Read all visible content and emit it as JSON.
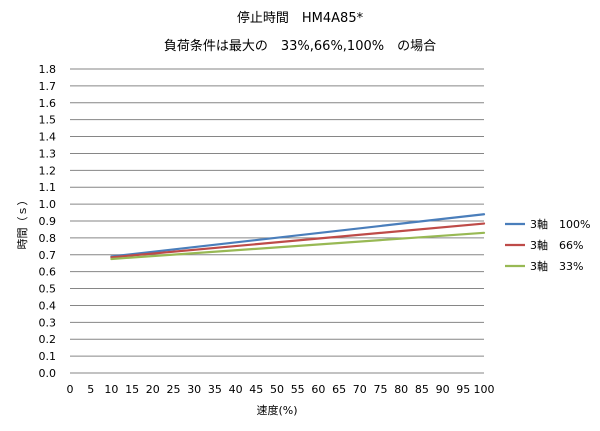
{
  "chart_data": {
    "type": "line",
    "title": "停止時間　HM4A85*",
    "subtitle": "負荷条件は最大の　33%,66%,100%　の場合",
    "xlabel": "速度(%)",
    "ylabel": "時間（ｓ）",
    "xlim": [
      0,
      100
    ],
    "ylim": [
      0,
      1.8
    ],
    "x_ticks": [
      "0",
      "5",
      "10",
      "15",
      "20",
      "25",
      "30",
      "35",
      "40",
      "45",
      "50",
      "55",
      "60",
      "65",
      "70",
      "75",
      "80",
      "85",
      "90",
      "95",
      "100"
    ],
    "y_ticks": [
      "0.0",
      "0.1",
      "0.2",
      "0.3",
      "0.4",
      "0.5",
      "0.6",
      "0.7",
      "0.8",
      "0.9",
      "1.0",
      "1.1",
      "1.2",
      "1.3",
      "1.4",
      "1.5",
      "1.6",
      "1.7",
      "1.8"
    ],
    "grid": "horizontal",
    "legend_position": "right",
    "x": [
      10,
      100
    ],
    "series": [
      {
        "name": "3軸　100%",
        "color": "#4A7EBB",
        "values": [
          0.69,
          0.94
        ]
      },
      {
        "name": "3軸　66%",
        "color": "#BE4B48",
        "values": [
          0.685,
          0.885
        ]
      },
      {
        "name": "3軸　33%",
        "color": "#98B954",
        "values": [
          0.675,
          0.83
        ]
      }
    ]
  }
}
